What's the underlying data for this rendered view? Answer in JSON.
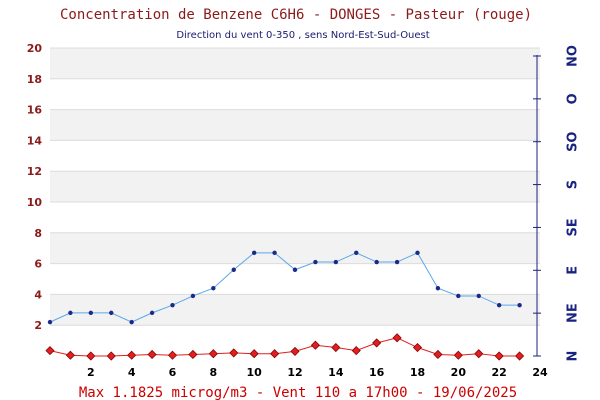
{
  "chart_data": {
    "type": "line",
    "title": "Concentration de Benzene C6H6  -   DONGES - Pasteur (rouge)",
    "subtitle": "Direction du vent 0-350 , sens Nord-Est-Sud-Ouest",
    "footer": "Max 1.1825 microg/m3 - Vent 110  a 17h00 - 19/06/2025",
    "xlim": [
      0,
      24
    ],
    "ylim": [
      0,
      20
    ],
    "x_ticks": [
      "2",
      "4",
      "6",
      "8",
      "10",
      "12",
      "14",
      "16",
      "18",
      "20",
      "22",
      "24"
    ],
    "y_ticks": [
      "2",
      "4",
      "6",
      "8",
      "10",
      "12",
      "14",
      "16",
      "18",
      "20"
    ],
    "right_axis_ticks": [
      "N",
      "NE",
      "E",
      "SE",
      "S",
      "SO",
      "O",
      "NO"
    ],
    "grid": true,
    "x": [
      0,
      1,
      2,
      3,
      4,
      5,
      6,
      7,
      8,
      9,
      10,
      11,
      12,
      13,
      14,
      15,
      16,
      17,
      18,
      19,
      20,
      21,
      22,
      23
    ],
    "series": [
      {
        "color": "#e02020",
        "marker": "diamond",
        "values": [
          0.35,
          0.05,
          0.0,
          0.0,
          0.05,
          0.1,
          0.05,
          0.1,
          0.15,
          0.2,
          0.15,
          0.15,
          0.3,
          0.7,
          0.55,
          0.35,
          0.85,
          1.18,
          0.55,
          0.1,
          0.05,
          0.15,
          0.0,
          0.0
        ]
      },
      {
        "color": "#5aa8e8",
        "marker": "dot",
        "values": [
          2.2,
          2.8,
          2.8,
          2.8,
          2.2,
          2.8,
          3.3,
          3.9,
          4.4,
          5.6,
          6.7,
          6.7,
          5.6,
          6.1,
          6.1,
          6.7,
          6.1,
          6.1,
          6.7,
          4.4,
          3.9,
          3.9,
          3.3,
          3.3
        ]
      }
    ]
  }
}
